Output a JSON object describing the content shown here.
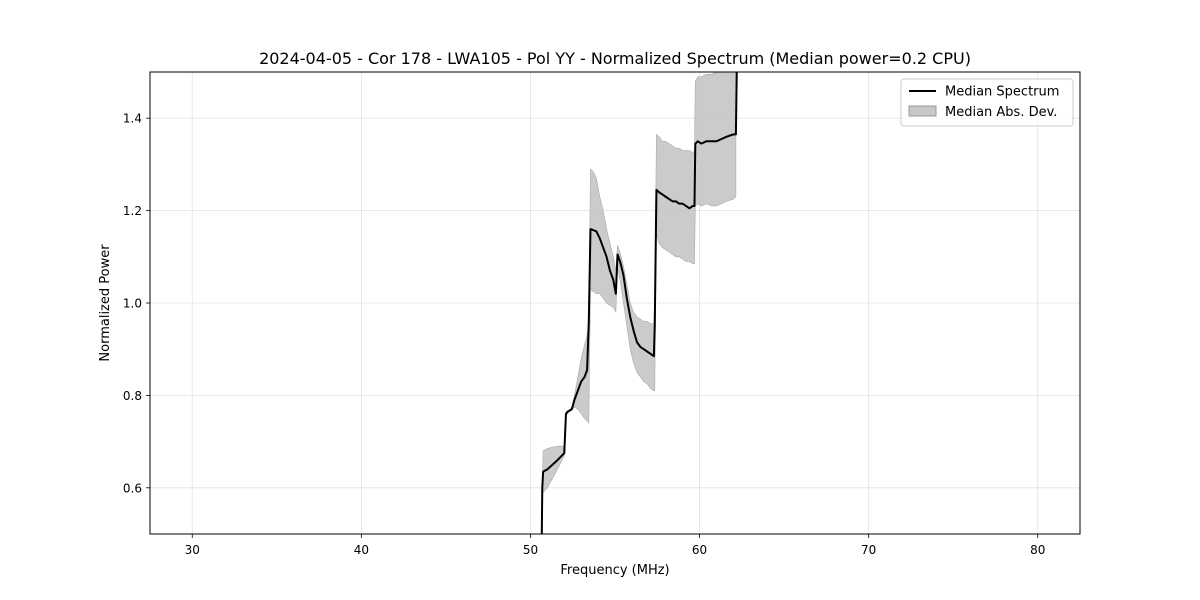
{
  "chart_data": {
    "type": "line",
    "title": "2024-04-05 - Cor 178 - LWA105 - Pol YY - Normalized Spectrum (Median power=0.2 CPU)",
    "xlabel": "Frequency (MHz)",
    "ylabel": "Normalized Power",
    "xlim": [
      27.5,
      82.5
    ],
    "ylim": [
      0.5,
      1.5
    ],
    "xticks": [
      30,
      40,
      50,
      60,
      70,
      80
    ],
    "yticks": [
      0.6,
      0.8,
      1.0,
      1.2,
      1.4
    ],
    "xtick_labels": [
      "30",
      "40",
      "50",
      "60",
      "70",
      "80"
    ],
    "ytick_labels": [
      "0.6",
      "0.8",
      "1.0",
      "1.2",
      "1.4"
    ],
    "grid": true,
    "legend": {
      "position": "top-right",
      "entries": [
        {
          "label": "Median Spectrum",
          "style": "line",
          "color": "#000000"
        },
        {
          "label": "Median Abs. Dev.",
          "style": "band",
          "color": "#c8c8c8"
        }
      ]
    },
    "series": [
      {
        "name": "Median Spectrum",
        "color": "#000000",
        "x": [
          50.67,
          50.7,
          50.75,
          51.0,
          51.3,
          51.6,
          52.0,
          52.1,
          52.2,
          52.45,
          52.6,
          52.8,
          53.0,
          53.2,
          53.35,
          53.45,
          53.55,
          53.7,
          53.9,
          54.1,
          54.3,
          54.5,
          54.7,
          54.9,
          55.0,
          55.05,
          55.15,
          55.3,
          55.5,
          55.7,
          55.9,
          56.1,
          56.3,
          56.5,
          56.7,
          56.9,
          57.1,
          57.3,
          57.35,
          57.45,
          57.6,
          57.8,
          58.0,
          58.2,
          58.4,
          58.6,
          58.8,
          59.0,
          59.2,
          59.4,
          59.6,
          59.7,
          59.75,
          59.9,
          60.1,
          60.4,
          60.7,
          61.0,
          61.3,
          61.6,
          62.0,
          62.15,
          62.2
        ],
        "y": [
          0.5,
          0.6,
          0.635,
          0.64,
          0.65,
          0.66,
          0.675,
          0.76,
          0.765,
          0.77,
          0.79,
          0.81,
          0.83,
          0.84,
          0.855,
          0.96,
          1.16,
          1.158,
          1.155,
          1.14,
          1.12,
          1.1,
          1.07,
          1.05,
          1.03,
          1.02,
          1.105,
          1.09,
          1.06,
          1.01,
          0.97,
          0.94,
          0.915,
          0.905,
          0.9,
          0.895,
          0.89,
          0.885,
          0.95,
          1.245,
          1.24,
          1.235,
          1.23,
          1.225,
          1.22,
          1.22,
          1.215,
          1.215,
          1.21,
          1.205,
          1.21,
          1.21,
          1.345,
          1.35,
          1.345,
          1.35,
          1.35,
          1.35,
          1.355,
          1.36,
          1.365,
          1.365,
          1.5
        ]
      },
      {
        "name": "Median Abs. Dev.",
        "color": "#c8c8c8",
        "x": [
          50.7,
          50.75,
          51.0,
          51.3,
          51.6,
          52.0,
          52.1,
          52.2,
          52.45,
          52.6,
          52.8,
          53.0,
          53.2,
          53.35,
          53.45,
          53.55,
          53.7,
          53.9,
          54.1,
          54.3,
          54.5,
          54.7,
          54.9,
          55.0,
          55.05,
          55.15,
          55.3,
          55.5,
          55.7,
          55.9,
          56.1,
          56.3,
          56.5,
          56.7,
          56.9,
          57.1,
          57.3,
          57.35,
          57.45,
          57.6,
          57.8,
          58.0,
          58.2,
          58.4,
          58.6,
          58.8,
          59.0,
          59.2,
          59.4,
          59.6,
          59.7,
          59.75,
          59.9,
          60.1,
          60.4,
          60.7,
          61.0,
          61.3,
          61.6,
          62.0,
          62.15
        ],
        "y_low": [
          0.59,
          0.59,
          0.6,
          0.62,
          0.64,
          0.67,
          0.76,
          0.76,
          0.77,
          0.775,
          0.77,
          0.76,
          0.75,
          0.745,
          0.74,
          1.03,
          1.025,
          1.02,
          1.02,
          1.01,
          1.0,
          0.995,
          0.99,
          0.985,
          0.98,
          1.075,
          1.05,
          1.0,
          0.95,
          0.9,
          0.87,
          0.85,
          0.84,
          0.83,
          0.825,
          0.815,
          0.81,
          0.81,
          1.15,
          1.13,
          1.12,
          1.115,
          1.11,
          1.105,
          1.1,
          1.1,
          1.095,
          1.09,
          1.09,
          1.085,
          1.085,
          1.21,
          1.215,
          1.21,
          1.215,
          1.21,
          1.21,
          1.215,
          1.22,
          1.225,
          1.23
        ],
        "y_high": [
          0.6,
          0.68,
          0.685,
          0.688,
          0.69,
          0.69,
          0.76,
          0.765,
          0.775,
          0.8,
          0.84,
          0.88,
          0.91,
          0.93,
          0.96,
          1.29,
          1.285,
          1.27,
          1.23,
          1.2,
          1.16,
          1.13,
          1.1,
          1.08,
          1.07,
          1.125,
          1.11,
          1.08,
          1.04,
          1.0,
          0.98,
          0.97,
          0.965,
          0.96,
          0.96,
          0.955,
          0.955,
          1.02,
          1.365,
          1.36,
          1.35,
          1.35,
          1.345,
          1.34,
          1.335,
          1.335,
          1.33,
          1.33,
          1.33,
          1.325,
          1.33,
          1.48,
          1.49,
          1.49,
          1.495,
          1.495,
          1.5,
          1.5,
          1.5,
          1.5,
          1.5
        ]
      }
    ]
  }
}
